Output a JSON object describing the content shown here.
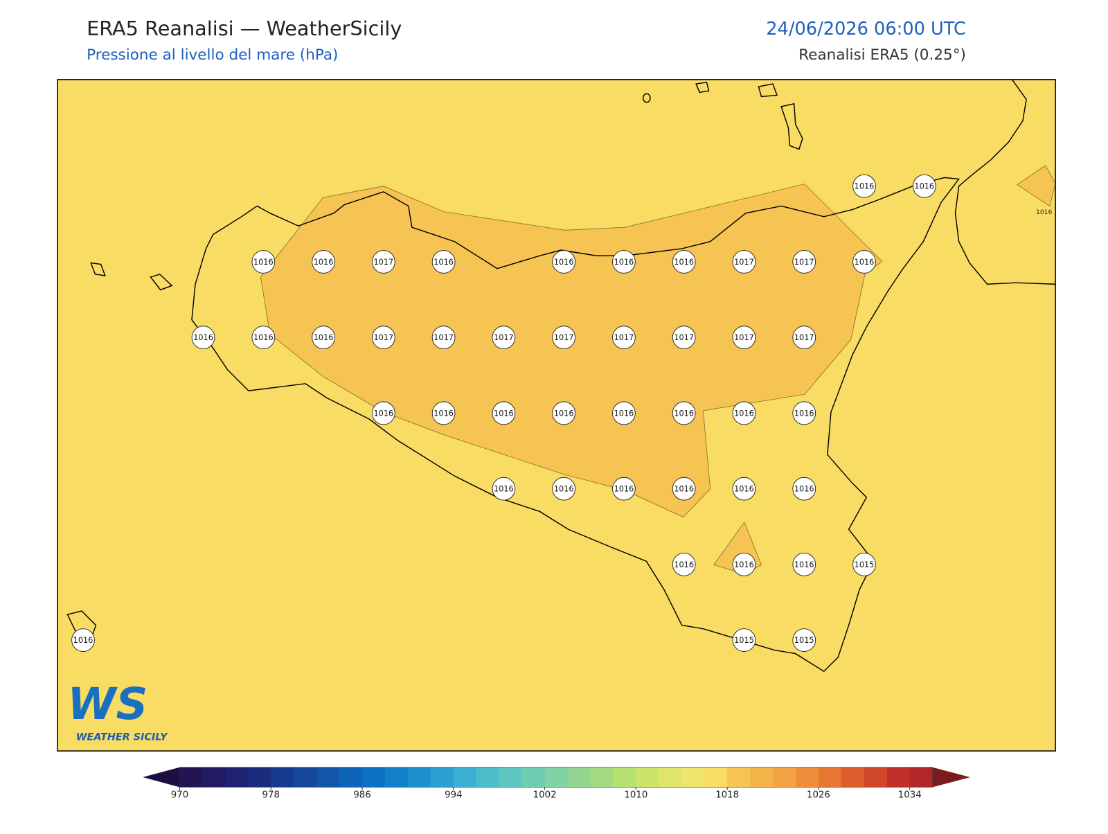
{
  "header": {
    "title": "ERA5 Reanalisi — WeatherSicily",
    "subtitle": "Pressione al livello del mare (hPa)",
    "date": "24/06/2026 06:00 UTC",
    "source": "Reanalisi ERA5 (0.25°)"
  },
  "stations": {
    "rows": [
      [
        null,
        null,
        null,
        null,
        null,
        null,
        null,
        null,
        null,
        null,
        null,
        null,
        null,
        1016,
        1016
      ],
      [
        null,
        null,
        null,
        1016,
        1016,
        1017,
        1016,
        null,
        1016,
        1016,
        1016,
        1017,
        1017,
        1016,
        null
      ],
      [
        null,
        null,
        1016,
        1016,
        1016,
        1017,
        1017,
        1017,
        1017,
        1017,
        1017,
        1017,
        1017,
        null,
        null
      ],
      [
        null,
        null,
        null,
        null,
        null,
        1016,
        1016,
        1016,
        1016,
        1016,
        1016,
        1016,
        1016,
        null,
        null
      ],
      [
        null,
        null,
        null,
        null,
        null,
        null,
        null,
        1016,
        1016,
        1016,
        1016,
        1016,
        1016,
        null,
        null
      ],
      [
        null,
        null,
        null,
        null,
        null,
        null,
        null,
        null,
        null,
        null,
        1016,
        1016,
        1016,
        1015,
        null
      ],
      [
        1016,
        null,
        null,
        null,
        null,
        null,
        null,
        null,
        null,
        null,
        null,
        1015,
        1015,
        null,
        null
      ]
    ]
  },
  "contour_label": 1016,
  "colorbar": {
    "range": [
      970,
      1036
    ],
    "ticks": [
      970,
      978,
      986,
      994,
      1002,
      1010,
      1018,
      1026,
      1034
    ],
    "colors": [
      "#231553",
      "#221b63",
      "#1f2270",
      "#1c2c7d",
      "#183a8c",
      "#15489a",
      "#1256aa",
      "#0f64b8",
      "#0d72c4",
      "#1380ca",
      "#1e90cf",
      "#2ca0d2",
      "#3cb0d2",
      "#4dbdcc",
      "#5ec6c2",
      "#6fcdb4",
      "#80d3a4",
      "#91d792",
      "#a3dc80",
      "#b6e06f",
      "#cbe46a",
      "#dde66a",
      "#eee66c",
      "#f8dc64",
      "#f6c452",
      "#f5b449",
      "#f3a342",
      "#ee8d3a",
      "#e67632",
      "#dd5e2d",
      "#d0472b",
      "#c0312b",
      "#b22828"
    ],
    "under": "#1a0f40",
    "over": "#7a1c1c"
  },
  "logo": {
    "mark": "WS",
    "text": "WEATHER SICILY"
  }
}
